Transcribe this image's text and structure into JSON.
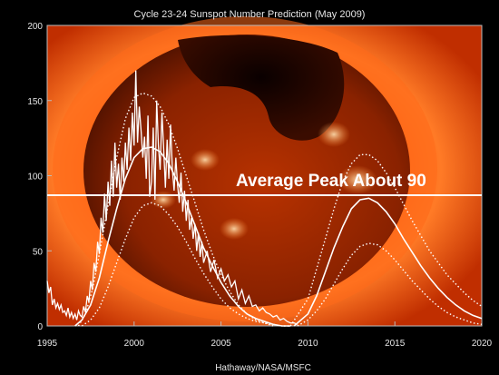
{
  "chart_data": {
    "type": "line",
    "title": "Cycle 23-24 Sunspot Number Prediction (May 2009)",
    "credit": "Hathaway/NASA/MSFC",
    "xlim": [
      1995,
      2020
    ],
    "ylim": [
      0,
      200
    ],
    "x_ticks": [
      "1995",
      "2000",
      "2005",
      "2010",
      "2015",
      "2020"
    ],
    "y_ticks": [
      "0",
      "50",
      "100",
      "150",
      "200"
    ],
    "grid": false,
    "annotation": {
      "text": "Average Peak About 90",
      "value": 87
    },
    "series": [
      {
        "style": "observed-monthly",
        "x": [
          1995.0,
          1995.1,
          1995.2,
          1995.3,
          1995.4,
          1995.5,
          1995.6,
          1995.7,
          1995.8,
          1995.9,
          1996.0,
          1996.1,
          1996.2,
          1996.3,
          1996.4,
          1996.5,
          1996.6,
          1996.7,
          1996.8,
          1996.9,
          1997.0,
          1997.1,
          1997.2,
          1997.3,
          1997.4,
          1997.5,
          1997.6,
          1997.7,
          1997.8,
          1997.9,
          1998.0,
          1998.1,
          1998.2,
          1998.3,
          1998.4,
          1998.5,
          1998.6,
          1998.7,
          1998.8,
          1998.9,
          1999.0,
          1999.1,
          1999.2,
          1999.3,
          1999.4,
          1999.5,
          1999.6,
          1999.7,
          1999.8,
          1999.9,
          2000.0,
          2000.1,
          2000.2,
          2000.3,
          2000.4,
          2000.5,
          2000.6,
          2000.7,
          2000.8,
          2000.9,
          2001.0,
          2001.1,
          2001.2,
          2001.3,
          2001.4,
          2001.5,
          2001.6,
          2001.7,
          2001.8,
          2001.9,
          2002.0,
          2002.1,
          2002.2,
          2002.3,
          2002.4,
          2002.5,
          2002.6,
          2002.7,
          2002.8,
          2002.9,
          2003.0,
          2003.1,
          2003.2,
          2003.3,
          2003.4,
          2003.5,
          2003.6,
          2003.7,
          2003.8,
          2003.9,
          2004.0,
          2004.2,
          2004.4,
          2004.6,
          2004.8,
          2005.0,
          2005.2,
          2005.4,
          2005.6,
          2005.8,
          2006.0,
          2006.2,
          2006.4,
          2006.6,
          2006.8,
          2007.0,
          2007.2,
          2007.4,
          2007.6,
          2007.8,
          2008.0,
          2008.2,
          2008.4,
          2008.6,
          2008.8,
          2009.0,
          2009.2,
          2009.4
        ],
        "y": [
          30,
          22,
          26,
          14,
          18,
          12,
          15,
          11,
          14,
          9,
          10,
          7,
          12,
          6,
          9,
          5,
          8,
          4,
          10,
          7,
          6,
          13,
          9,
          20,
          16,
          30,
          24,
          42,
          36,
          56,
          48,
          72,
          62,
          88,
          70,
          96,
          80,
          110,
          86,
          122,
          92,
          108,
          84,
          112,
          96,
          122,
          104,
          132,
          110,
          142,
          120,
          170,
          122,
          146,
          130,
          112,
          126,
          98,
          140,
          86,
          96,
          132,
          84,
          150,
          120,
          104,
          142,
          118,
          92,
          124,
          98,
          134,
          104,
          90,
          112,
          94,
          82,
          102,
          76,
          90,
          70,
          84,
          64,
          72,
          58,
          68,
          50,
          62,
          46,
          56,
          42,
          50,
          36,
          44,
          32,
          38,
          30,
          34,
          26,
          30,
          18,
          24,
          15,
          20,
          13,
          14,
          10,
          12,
          9,
          8,
          6,
          7,
          4,
          5,
          3,
          2,
          2,
          1
        ]
      },
      {
        "style": "prediction",
        "x": [
          1996.6,
          1997.0,
          1997.5,
          1998.0,
          1998.5,
          1999.0,
          1999.5,
          2000.0,
          2000.5,
          2001.0,
          2001.5,
          2002.0,
          2002.5,
          2003.0,
          2003.5,
          2004.0,
          2004.5,
          2005.0,
          2005.5,
          2006.0,
          2006.5,
          2007.0,
          2007.5,
          2008.0,
          2008.5,
          2009.0
        ],
        "y": [
          0,
          4,
          14,
          32,
          56,
          78,
          98,
          112,
          118,
          119,
          116,
          108,
          96,
          82,
          67,
          52,
          40,
          29,
          20,
          13,
          8,
          5,
          3,
          1,
          0,
          0
        ]
      },
      {
        "style": "prediction-bound",
        "x": [
          1996.8,
          1997.2,
          1997.6,
          1998.0,
          1998.5,
          1999.0,
          1999.5,
          2000.0,
          2000.5,
          2001.0,
          2001.5,
          2002.0,
          2002.5,
          2003.0,
          2003.5,
          2004.0,
          2004.5,
          2005.0,
          2005.5,
          2006.0,
          2006.5,
          2007.0,
          2007.5,
          2008.0
        ],
        "y": [
          0,
          8,
          24,
          48,
          80,
          112,
          138,
          152,
          155,
          153,
          146,
          134,
          118,
          100,
          82,
          64,
          48,
          34,
          23,
          14,
          8,
          4,
          2,
          0
        ]
      },
      {
        "style": "prediction-bound",
        "x": [
          1997.0,
          1997.5,
          1998.0,
          1998.5,
          1999.0,
          1999.5,
          2000.0,
          2000.5,
          2001.0,
          2001.5,
          2002.0,
          2002.5,
          2003.0,
          2003.5,
          2004.0,
          2004.5,
          2005.0,
          2005.5,
          2006.0,
          2006.5,
          2007.0,
          2007.5,
          2008.0,
          2008.5,
          2009.0
        ],
        "y": [
          0,
          4,
          12,
          26,
          42,
          58,
          72,
          80,
          82,
          80,
          74,
          66,
          56,
          45,
          35,
          26,
          18,
          12,
          8,
          5,
          3,
          2,
          1,
          0,
          0
        ]
      },
      {
        "style": "prediction",
        "x": [
          2009.2,
          2010.0,
          2010.5,
          2011.0,
          2011.5,
          2012.0,
          2012.5,
          2013.0,
          2013.5,
          2014.0,
          2014.5,
          2015.0,
          2015.5,
          2016.0,
          2016.5,
          2017.0,
          2017.5,
          2018.0,
          2018.5,
          2019.0,
          2019.5,
          2020.0
        ],
        "y": [
          0,
          8,
          20,
          36,
          52,
          66,
          78,
          84,
          85,
          82,
          76,
          68,
          58,
          49,
          40,
          32,
          25,
          19,
          14,
          10,
          7,
          5
        ]
      },
      {
        "style": "prediction-bound",
        "x": [
          2009.0,
          2010.0,
          2010.5,
          2011.0,
          2011.5,
          2012.0,
          2012.5,
          2013.0,
          2013.5,
          2014.0,
          2014.5,
          2015.0,
          2015.5,
          2016.0,
          2016.5,
          2017.0,
          2017.5,
          2018.0,
          2018.5,
          2019.0,
          2019.5,
          2020.0
        ],
        "y": [
          0,
          18,
          38,
          58,
          78,
          96,
          108,
          114,
          114,
          110,
          102,
          92,
          81,
          70,
          60,
          50,
          42,
          34,
          28,
          22,
          17,
          13
        ]
      },
      {
        "style": "prediction-bound",
        "x": [
          2009.4,
          2010.0,
          2010.5,
          2011.0,
          2011.5,
          2012.0,
          2012.5,
          2013.0,
          2013.5,
          2014.0,
          2014.5,
          2015.0,
          2015.5,
          2016.0,
          2016.5,
          2017.0,
          2017.5,
          2018.0,
          2018.5,
          2019.0,
          2019.5,
          2020.0
        ],
        "y": [
          0,
          4,
          10,
          18,
          28,
          38,
          47,
          53,
          55,
          54,
          50,
          44,
          37,
          30,
          24,
          18,
          13,
          9,
          6,
          4,
          2,
          1
        ]
      }
    ]
  }
}
